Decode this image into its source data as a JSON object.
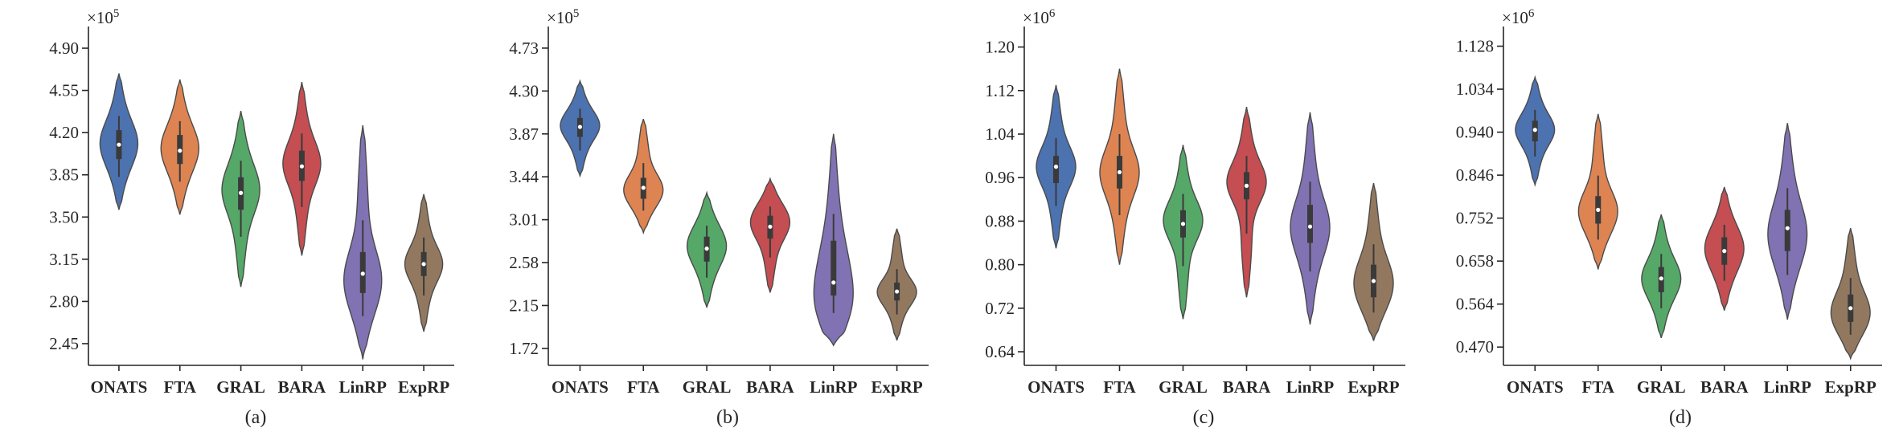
{
  "chart_data": [
    {
      "type": "violin",
      "panel_label": "(a)",
      "exponent_label": "×10",
      "exponent": "5",
      "ylim": [
        2.27,
        5.0
      ],
      "yticks": [
        "4.90",
        "4.55",
        "4.20",
        "3.85",
        "3.50",
        "3.15",
        "2.80",
        "2.45"
      ],
      "categories": [
        "ONATS",
        "FTA",
        "GRAL",
        "BARA",
        "LinRP",
        "ExpRP"
      ],
      "series": [
        {
          "category": "ONATS",
          "color": "#4C72B0",
          "min": 3.56,
          "q1": 3.98,
          "median": 4.1,
          "q3": 4.22,
          "max": 4.69,
          "mode": 4.11
        },
        {
          "category": "FTA",
          "color": "#DD8452",
          "min": 3.52,
          "q1": 3.94,
          "median": 4.05,
          "q3": 4.18,
          "max": 4.64,
          "mode": 4.07
        },
        {
          "category": "GRAL",
          "color": "#55A868",
          "min": 2.92,
          "q1": 3.56,
          "median": 3.7,
          "q3": 3.83,
          "max": 4.38,
          "mode": 3.72
        },
        {
          "category": "BARA",
          "color": "#C44E52",
          "min": 3.18,
          "q1": 3.8,
          "median": 3.92,
          "q3": 4.05,
          "max": 4.62,
          "mode": 3.94
        },
        {
          "category": "LinRP",
          "color": "#8172B3",
          "min": 2.32,
          "q1": 2.87,
          "median": 3.03,
          "q3": 3.21,
          "max": 4.26,
          "mode": 3.0
        },
        {
          "category": "ExpRP",
          "color": "#937860",
          "min": 2.55,
          "q1": 3.01,
          "median": 3.11,
          "q3": 3.21,
          "max": 3.69,
          "mode": 3.11
        }
      ]
    },
    {
      "type": "violin",
      "panel_label": "(b)",
      "exponent_label": "×10",
      "exponent": "5",
      "ylim": [
        1.55,
        4.85
      ],
      "yticks": [
        "4.73",
        "4.30",
        "3.87",
        "3.44",
        "3.01",
        "2.58",
        "2.15",
        "1.72"
      ],
      "categories": [
        "ONATS",
        "FTA",
        "GRAL",
        "BARA",
        "LinRP",
        "ExpRP"
      ],
      "series": [
        {
          "category": "ONATS",
          "color": "#4C72B0",
          "min": 3.45,
          "q1": 3.84,
          "median": 3.94,
          "q3": 4.03,
          "max": 4.4,
          "mode": 3.95
        },
        {
          "category": "FTA",
          "color": "#DD8452",
          "min": 2.88,
          "q1": 3.22,
          "median": 3.33,
          "q3": 3.43,
          "max": 4.02,
          "mode": 3.32
        },
        {
          "category": "GRAL",
          "color": "#55A868",
          "min": 2.13,
          "q1": 2.59,
          "median": 2.72,
          "q3": 2.84,
          "max": 3.28,
          "mode": 2.74
        },
        {
          "category": "BARA",
          "color": "#C44E52",
          "min": 2.28,
          "q1": 2.82,
          "median": 2.94,
          "q3": 3.05,
          "max": 3.42,
          "mode": 2.97
        },
        {
          "category": "LinRP",
          "color": "#8172B3",
          "min": 1.75,
          "q1": 2.25,
          "median": 2.38,
          "q3": 2.8,
          "max": 3.87,
          "mode": 2.35
        },
        {
          "category": "ExpRP",
          "color": "#937860",
          "min": 1.8,
          "q1": 2.2,
          "median": 2.29,
          "q3": 2.38,
          "max": 2.92,
          "mode": 2.29
        }
      ]
    },
    {
      "type": "violin",
      "panel_label": "(c)",
      "exponent_label": "×10",
      "exponent": "6",
      "ylim": [
        0.615,
        1.22
      ],
      "yticks": [
        "1.20",
        "1.12",
        "1.04",
        "0.96",
        "0.88",
        "0.80",
        "0.72",
        "0.64"
      ],
      "categories": [
        "ONATS",
        "FTA",
        "GRAL",
        "BARA",
        "LinRP",
        "ExpRP"
      ],
      "series": [
        {
          "category": "ONATS",
          "color": "#4C72B0",
          "min": 0.83,
          "q1": 0.95,
          "median": 0.98,
          "q3": 1.0,
          "max": 1.13,
          "mode": 0.98
        },
        {
          "category": "FTA",
          "color": "#DD8452",
          "min": 0.8,
          "q1": 0.94,
          "median": 0.97,
          "q3": 1.0,
          "max": 1.16,
          "mode": 0.97
        },
        {
          "category": "GRAL",
          "color": "#55A868",
          "min": 0.7,
          "q1": 0.85,
          "median": 0.875,
          "q3": 0.9,
          "max": 1.02,
          "mode": 0.88
        },
        {
          "category": "BARA",
          "color": "#C44E52",
          "min": 0.74,
          "q1": 0.92,
          "median": 0.945,
          "q3": 0.97,
          "max": 1.09,
          "mode": 0.95
        },
        {
          "category": "LinRP",
          "color": "#8172B3",
          "min": 0.69,
          "q1": 0.84,
          "median": 0.87,
          "q3": 0.91,
          "max": 1.08,
          "mode": 0.87
        },
        {
          "category": "ExpRP",
          "color": "#937860",
          "min": 0.66,
          "q1": 0.74,
          "median": 0.77,
          "q3": 0.8,
          "max": 0.95,
          "mode": 0.77
        }
      ]
    },
    {
      "type": "violin",
      "panel_label": "(d)",
      "exponent_label": "×10",
      "exponent": "6",
      "ylim": [
        0.43,
        1.15
      ],
      "yticks": [
        "1.128",
        "1.034",
        "0.940",
        "0.846",
        "0.752",
        "0.658",
        "0.564",
        "0.470"
      ],
      "categories": [
        "ONATS",
        "FTA",
        "GRAL",
        "BARA",
        "LinRP",
        "ExpRP"
      ],
      "series": [
        {
          "category": "ONATS",
          "color": "#4C72B0",
          "min": 0.825,
          "q1": 0.92,
          "median": 0.945,
          "q3": 0.965,
          "max": 1.06,
          "mode": 0.945
        },
        {
          "category": "FTA",
          "color": "#DD8452",
          "min": 0.64,
          "q1": 0.74,
          "median": 0.77,
          "q3": 0.8,
          "max": 0.98,
          "mode": 0.77
        },
        {
          "category": "GRAL",
          "color": "#55A868",
          "min": 0.49,
          "q1": 0.59,
          "median": 0.62,
          "q3": 0.645,
          "max": 0.76,
          "mode": 0.62
        },
        {
          "category": "BARA",
          "color": "#C44E52",
          "min": 0.55,
          "q1": 0.65,
          "median": 0.68,
          "q3": 0.71,
          "max": 0.82,
          "mode": 0.685
        },
        {
          "category": "LinRP",
          "color": "#8172B3",
          "min": 0.53,
          "q1": 0.68,
          "median": 0.73,
          "q3": 0.77,
          "max": 0.96,
          "mode": 0.72
        },
        {
          "category": "ExpRP",
          "color": "#937860",
          "min": 0.445,
          "q1": 0.525,
          "median": 0.555,
          "q3": 0.585,
          "max": 0.73,
          "mode": 0.55
        }
      ]
    }
  ]
}
